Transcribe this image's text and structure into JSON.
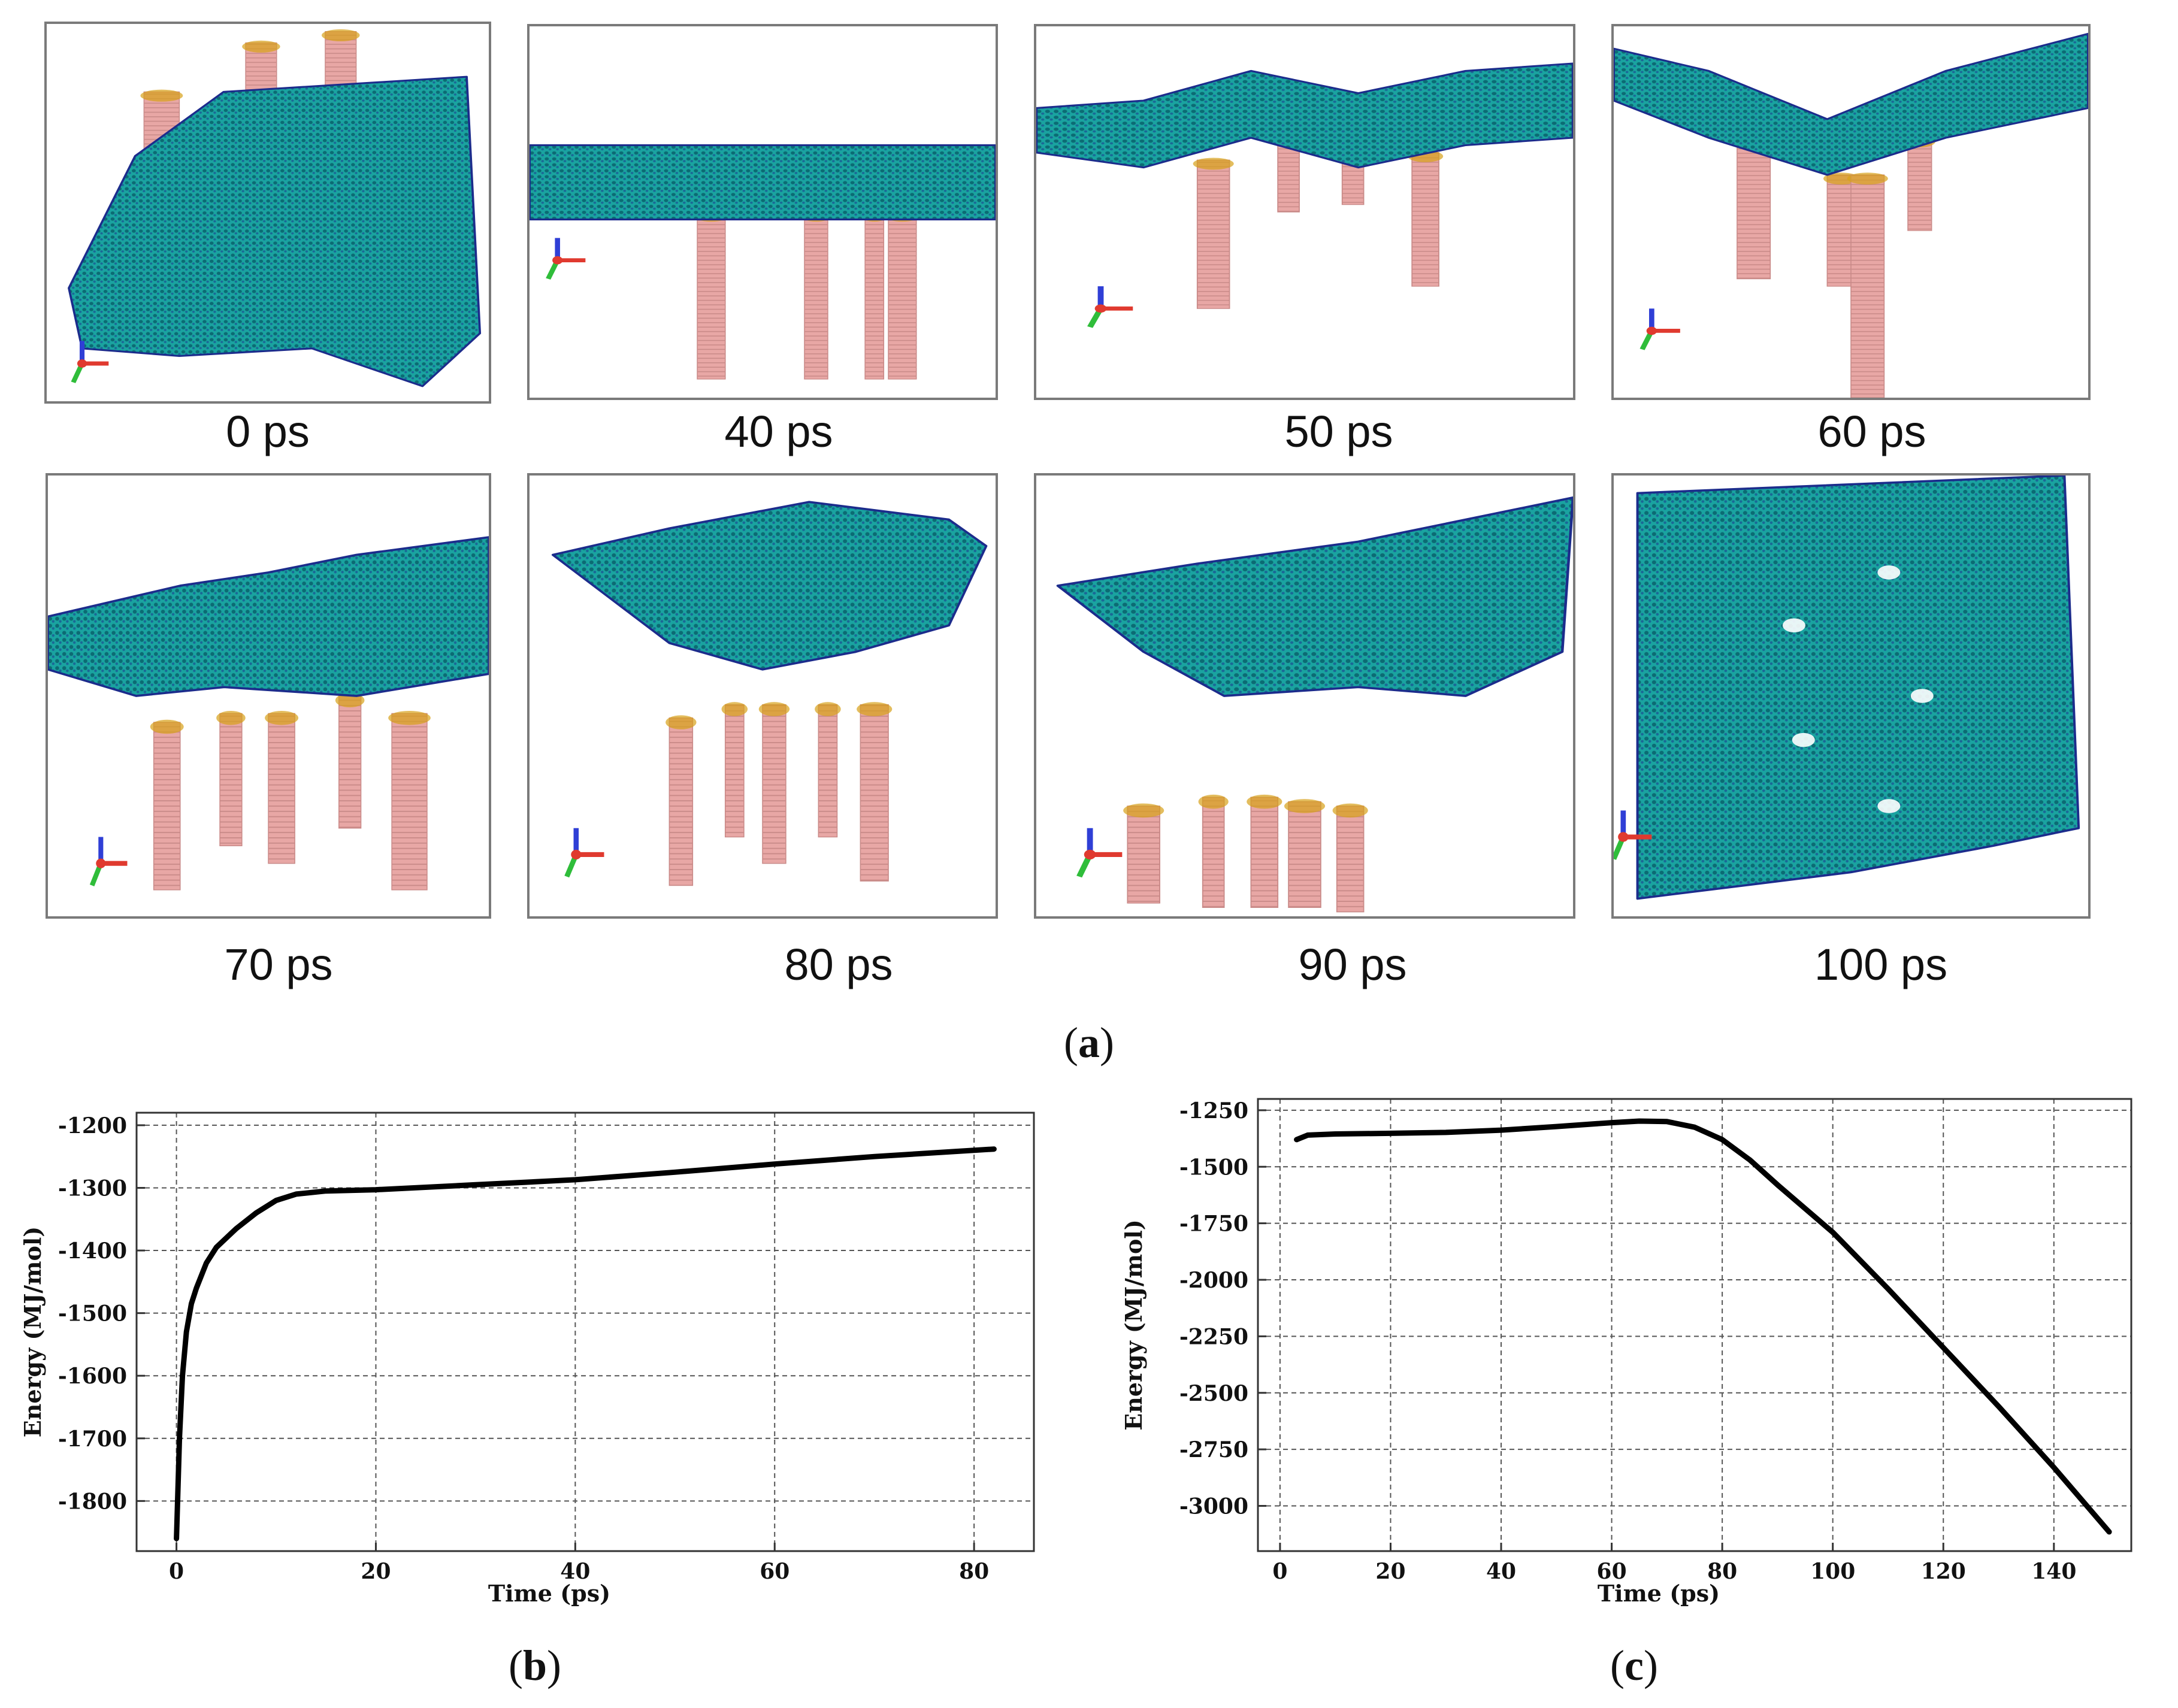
{
  "figure": {
    "part_a_label": "a",
    "part_b_label": "b",
    "part_c_label": "c"
  },
  "snapshots": [
    {
      "caption": "0 ps",
      "icon": "molecular-snapshot"
    },
    {
      "caption": "40 ps",
      "icon": "molecular-snapshot"
    },
    {
      "caption": "50 ps",
      "icon": "molecular-snapshot"
    },
    {
      "caption": "60 ps",
      "icon": "molecular-snapshot"
    },
    {
      "caption": "70 ps",
      "icon": "molecular-snapshot"
    },
    {
      "caption": "80 ps",
      "icon": "molecular-snapshot"
    },
    {
      "caption": "90 ps",
      "icon": "molecular-snapshot"
    },
    {
      "caption": "100 ps",
      "icon": "molecular-snapshot"
    }
  ],
  "colors": {
    "membrane": "#1aa3a0",
    "membrane_dark": "#0c6b74",
    "membrane_edge": "#1c2c8c",
    "nanotube": "#e8a7a5",
    "nanotube_line": "#c98a88",
    "defect": "#d7a11a",
    "axis_x": "#e03a2f",
    "axis_y": "#2fbd3a",
    "axis_z": "#2f3fd6",
    "curve": "#000000"
  },
  "chart_data": [
    {
      "type": "line",
      "title": "",
      "xlabel": "Time (ps)",
      "ylabel": "Energy (MJ/mol)",
      "xlim": [
        -4,
        86
      ],
      "ylim": [
        -1880,
        -1180
      ],
      "xticks": [
        0,
        20,
        40,
        60,
        80
      ],
      "yticks": [
        -1800,
        -1700,
        -1600,
        -1500,
        -1400,
        -1300,
        -1200
      ],
      "xtick_labels": [
        "0",
        "20",
        "40",
        "60",
        "80"
      ],
      "ytick_labels": [
        "-1800",
        "-1700",
        "-1600",
        "-1500",
        "-1400",
        "-1300",
        "-1200"
      ],
      "grid": true,
      "series": [
        {
          "name": "Energy",
          "x": [
            0,
            0.3,
            0.6,
            1,
            1.5,
            2,
            3,
            4,
            5,
            6,
            8,
            10,
            12,
            15,
            20,
            30,
            40,
            50,
            60,
            70,
            82
          ],
          "y": [
            -1860,
            -1700,
            -1600,
            -1530,
            -1485,
            -1460,
            -1420,
            -1395,
            -1380,
            -1365,
            -1340,
            -1320,
            -1310,
            -1305,
            -1303,
            -1295,
            -1287,
            -1275,
            -1262,
            -1250,
            -1238
          ]
        }
      ]
    },
    {
      "type": "line",
      "title": "",
      "xlabel": "Time (ps)",
      "ylabel": "Energy (MJ/mol)",
      "xlim": [
        -4,
        154
      ],
      "ylim": [
        -3200,
        -1200
      ],
      "xticks": [
        0,
        20,
        40,
        60,
        80,
        100,
        120,
        140
      ],
      "yticks": [
        -3000,
        -2750,
        -2500,
        -2250,
        -2000,
        -1750,
        -1500,
        -1250
      ],
      "xtick_labels": [
        "0",
        "20",
        "40",
        "60",
        "80",
        "100",
        "120",
        "140"
      ],
      "ytick_labels": [
        "-3000",
        "-2750",
        "-2500",
        "-2250",
        "-2000",
        "-1750",
        "-1500",
        "-1250"
      ],
      "grid": true,
      "series": [
        {
          "name": "Energy",
          "x": [
            3,
            5,
            10,
            20,
            30,
            40,
            50,
            60,
            65,
            70,
            75,
            80,
            85,
            90,
            100,
            110,
            120,
            130,
            140,
            150
          ],
          "y": [
            -1380,
            -1360,
            -1355,
            -1352,
            -1348,
            -1338,
            -1322,
            -1305,
            -1298,
            -1300,
            -1325,
            -1380,
            -1470,
            -1580,
            -1790,
            -2040,
            -2300,
            -2560,
            -2830,
            -3115
          ]
        }
      ]
    }
  ]
}
